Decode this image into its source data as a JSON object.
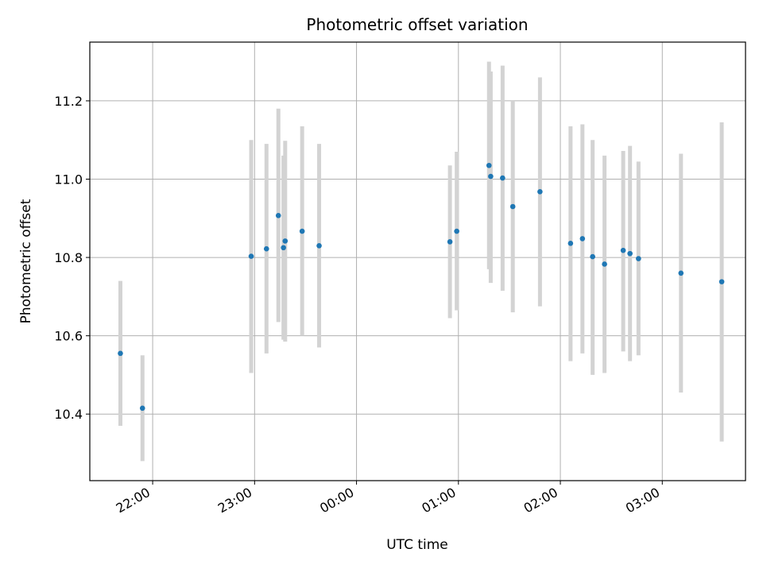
{
  "chart_data": {
    "type": "scatter",
    "title": "Photometric offset variation",
    "xlabel": "UTC time",
    "ylabel": "Photometric offset",
    "x_unit": "time of day (UTC)",
    "xlim": [
      "21:23",
      "03:49"
    ],
    "ylim": [
      10.23,
      11.35
    ],
    "xticks": [
      "22:00",
      "23:00",
      "00:00",
      "01:00",
      "02:00",
      "03:00"
    ],
    "yticks": [
      10.4,
      10.6,
      10.8,
      11.0,
      11.2
    ],
    "grid": true,
    "marker_color": "#1f77b4",
    "errorbar_color": "#d3d3d3",
    "points": [
      {
        "t": "21:41",
        "y": 10.555,
        "lo": 10.37,
        "hi": 10.74
      },
      {
        "t": "21:54",
        "y": 10.415,
        "lo": 10.28,
        "hi": 10.55
      },
      {
        "t": "22:58",
        "y": 10.803,
        "lo": 10.505,
        "hi": 11.1
      },
      {
        "t": "23:07",
        "y": 10.822,
        "lo": 10.555,
        "hi": 11.09
      },
      {
        "t": "23:14",
        "y": 10.907,
        "lo": 10.635,
        "hi": 11.18
      },
      {
        "t": "23:17",
        "y": 10.825,
        "lo": 10.59,
        "hi": 11.06
      },
      {
        "t": "23:18",
        "y": 10.842,
        "lo": 10.585,
        "hi": 11.098
      },
      {
        "t": "23:28",
        "y": 10.867,
        "lo": 10.6,
        "hi": 11.135
      },
      {
        "t": "23:38",
        "y": 10.83,
        "lo": 10.57,
        "hi": 11.09
      },
      {
        "t": "00:55",
        "y": 10.84,
        "lo": 10.645,
        "hi": 11.035
      },
      {
        "t": "00:59",
        "y": 10.867,
        "lo": 10.665,
        "hi": 11.07
      },
      {
        "t": "01:18",
        "y": 11.035,
        "lo": 10.77,
        "hi": 11.3
      },
      {
        "t": "01:19",
        "y": 11.007,
        "lo": 10.735,
        "hi": 11.275
      },
      {
        "t": "01:26",
        "y": 11.003,
        "lo": 10.715,
        "hi": 11.29
      },
      {
        "t": "01:32",
        "y": 10.93,
        "lo": 10.66,
        "hi": 11.2
      },
      {
        "t": "01:48",
        "y": 10.968,
        "lo": 10.675,
        "hi": 11.26
      },
      {
        "t": "02:06",
        "y": 10.836,
        "lo": 10.535,
        "hi": 11.135
      },
      {
        "t": "02:13",
        "y": 10.848,
        "lo": 10.555,
        "hi": 11.14
      },
      {
        "t": "02:19",
        "y": 10.802,
        "lo": 10.5,
        "hi": 11.1
      },
      {
        "t": "02:26",
        "y": 10.783,
        "lo": 10.505,
        "hi": 11.06
      },
      {
        "t": "02:37",
        "y": 10.818,
        "lo": 10.56,
        "hi": 11.072
      },
      {
        "t": "02:41",
        "y": 10.81,
        "lo": 10.535,
        "hi": 11.085
      },
      {
        "t": "02:46",
        "y": 10.797,
        "lo": 10.55,
        "hi": 11.045
      },
      {
        "t": "03:11",
        "y": 10.76,
        "lo": 10.455,
        "hi": 11.065
      },
      {
        "t": "03:35",
        "y": 10.738,
        "lo": 10.33,
        "hi": 11.145
      }
    ]
  }
}
